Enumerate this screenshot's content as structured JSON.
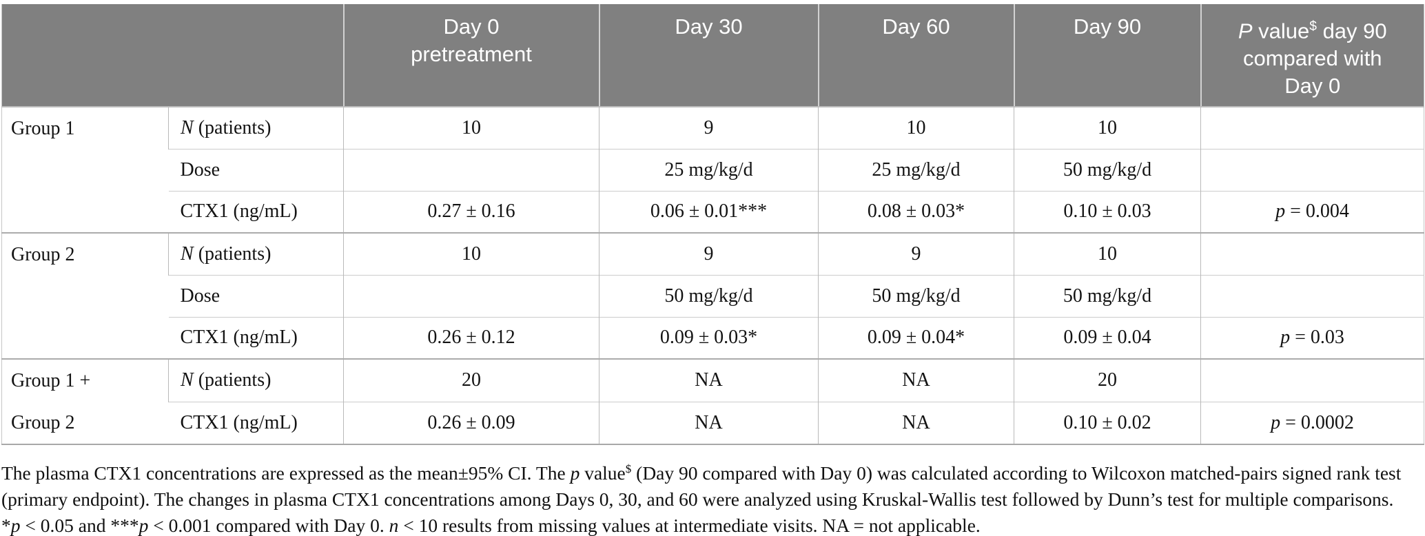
{
  "colors": {
    "header_bg": "#808080",
    "header_text": "#ffffff",
    "grid_line": "#bdbdbd",
    "body_text": "#131313"
  },
  "table": {
    "header": {
      "corner": "",
      "day0": "Day 0<br>pretreatment",
      "day30": "Day 30",
      "day60": "Day 60",
      "day90": "Day 90",
      "pvalue": "<i>P</i> value<sup>$</sup> day 90<br>compared with<br>Day 0"
    },
    "groups": [
      {
        "label": "Group 1",
        "rows": [
          {
            "label": "<i>N</i> (patients)",
            "day0": "10",
            "day30": "9",
            "day60": "10",
            "day90": "10",
            "p": ""
          },
          {
            "label": "Dose",
            "day0": "",
            "day30": "25 mg/kg/d",
            "day60": "25 mg/kg/d",
            "day90": "50 mg/kg/d",
            "p": ""
          },
          {
            "label": "CTX1 (ng/mL)",
            "day0": "0.27 ± 0.16",
            "day30": "0.06 ± 0.01***",
            "day60": "0.08 ± 0.03*",
            "day90": "0.10 ± 0.03",
            "p": "<i>p</i> = 0.004"
          }
        ]
      },
      {
        "label": "Group 2",
        "rows": [
          {
            "label": "<i>N</i> (patients)",
            "day0": "10",
            "day30": "9",
            "day60": "9",
            "day90": "10",
            "p": ""
          },
          {
            "label": "Dose",
            "day0": "",
            "day30": "50 mg/kg/d",
            "day60": "50 mg/kg/d",
            "day90": "50 mg/kg/d",
            "p": ""
          },
          {
            "label": "CTX1 (ng/mL)",
            "day0": "0.26 ± 0.12",
            "day30": "0.09 ± 0.03*",
            "day60": "0.09 ± 0.04*",
            "day90": "0.09 ± 0.04",
            "p": "<i>p</i> = 0.03"
          }
        ]
      },
      {
        "label": "Group 1 +<br>Group 2",
        "rows": [
          {
            "label": "<i>N</i> (patients)",
            "day0": "20",
            "day30": "NA",
            "day60": "NA",
            "day90": "20",
            "p": ""
          },
          {
            "label": "CTX1 (ng/mL)",
            "day0": "0.26 ± 0.09",
            "day30": "NA",
            "day60": "NA",
            "day90": "0.10 ± 0.02",
            "p": "<i>p</i> = 0.0002"
          }
        ]
      }
    ]
  },
  "footnote": {
    "line1": "The plasma CTX1 concentrations are expressed as the mean±95% CI. The <i>p</i> value<sup>$</sup> (Day 90 compared with Day 0) was calculated according to Wilcoxon matched-pairs signed rank test",
    "line2": "(primary endpoint). The changes in plasma CTX1 concentrations among Days 0, 30, and 60 were analyzed using Kruskal-Wallis test followed by Dunn’s test for multiple comparisons.",
    "line3": "*<i>p</i> < 0.05 and ***<i>p</i> < 0.001 compared with Day 0. <i>n</i> < 10 results from missing values at intermediate visits. NA = not applicable."
  }
}
